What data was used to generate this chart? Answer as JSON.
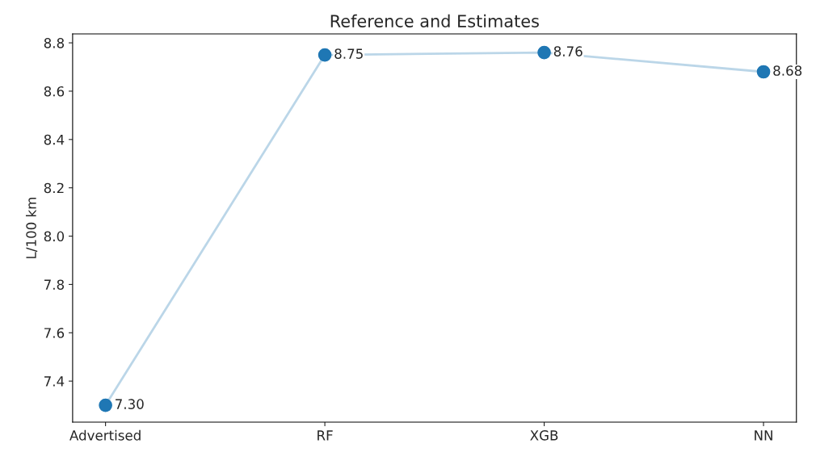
{
  "chart_data": {
    "type": "line",
    "title": "Reference and Estimates",
    "ylabel": "L/100 km",
    "categories": [
      "Advertised",
      "RF",
      "XGB",
      "NN"
    ],
    "series": [
      {
        "color": "#1f77b4",
        "values": [
          7.3,
          8.75,
          8.76,
          8.68
        ],
        "marker": "circle",
        "value_labels": [
          "7.30",
          "8.75",
          "8.76",
          "8.68"
        ]
      }
    ],
    "ylim": [
      7.23,
      8.837
    ],
    "yticks": [
      {
        "value": 7.4,
        "label": "7.4"
      },
      {
        "value": 7.6,
        "label": "7.6"
      },
      {
        "value": 7.8,
        "label": "7.8"
      },
      {
        "value": 8.0,
        "label": "8.0"
      },
      {
        "value": 8.2,
        "label": "8.2"
      },
      {
        "value": 8.4,
        "label": "8.4"
      },
      {
        "value": 8.6,
        "label": "8.6"
      },
      {
        "value": 8.8,
        "label": "8.8"
      }
    ],
    "grid": false
  }
}
